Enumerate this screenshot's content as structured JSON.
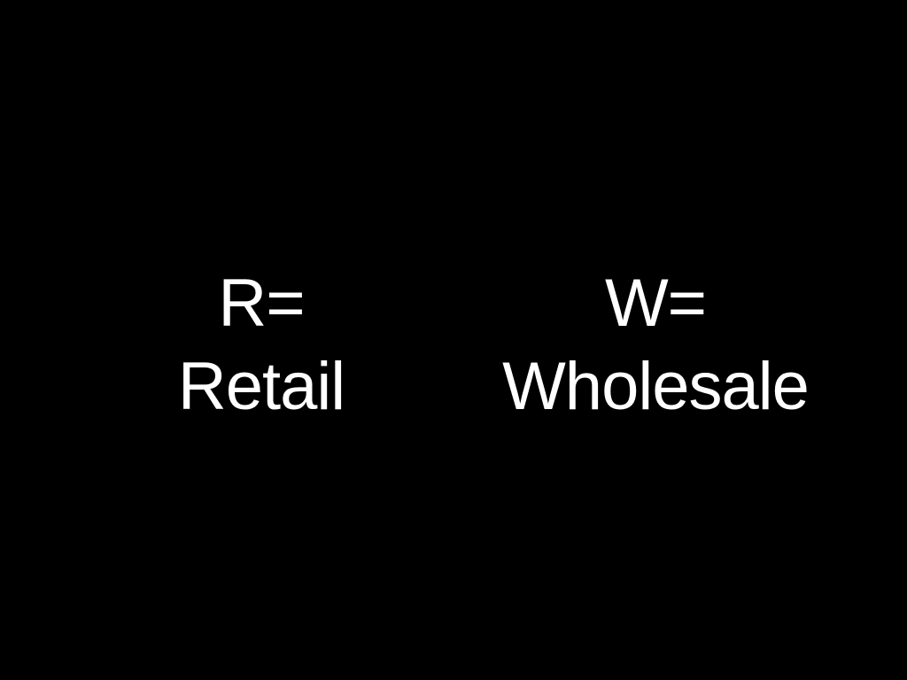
{
  "slide": {
    "background_color": "#000000",
    "text_color": "#ffffff",
    "terms": [
      {
        "abbreviation": "R=",
        "meaning": "Retail"
      },
      {
        "abbreviation": "W=",
        "meaning": "Wholesale"
      }
    ]
  }
}
